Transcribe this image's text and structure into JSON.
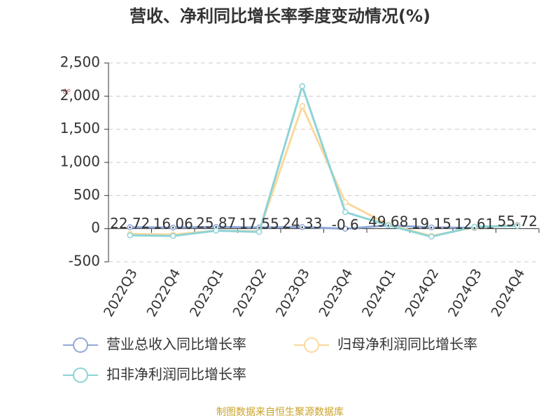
{
  "chart_data": {
    "type": "line",
    "title": "营收、净利同比增长率季度变动情况(%)",
    "ylabel": "%",
    "categories": [
      "2022Q3",
      "2022Q4",
      "2023Q1",
      "2023Q2",
      "2023Q3",
      "2023Q4",
      "2024Q1",
      "2024Q2",
      "2024Q3",
      "2024Q4"
    ],
    "series": [
      {
        "name": "营业总收入同比增长率",
        "color": "#8fa8d8",
        "values": [
          22.72,
          16.06,
          25.87,
          17.55,
          24.33,
          -0.6,
          49.68,
          19.15,
          12.61,
          55.72
        ]
      },
      {
        "name": "归母净利润同比增长率",
        "color": "#fbd89c",
        "values": [
          -80,
          -90,
          -30,
          -40,
          1850,
          400,
          60,
          -110,
          20,
          50
        ]
      },
      {
        "name": "扣非净利润同比增长率",
        "color": "#8dd3d6",
        "values": [
          -100,
          -110,
          -30,
          -50,
          2150,
          250,
          50,
          -120,
          30,
          40
        ]
      }
    ],
    "ylim": [
      -500,
      2500
    ],
    "yticks": [
      -500,
      0,
      500,
      {
        "value": 1000,
        "label": "1,000"
      },
      {
        "value": 1500,
        "label": "1,500"
      },
      {
        "value": 2000,
        "label": "2,000"
      },
      {
        "value": 2500,
        "label": "2,500"
      }
    ],
    "grid": true,
    "source": "制图数据来自恒生聚源数据库"
  }
}
